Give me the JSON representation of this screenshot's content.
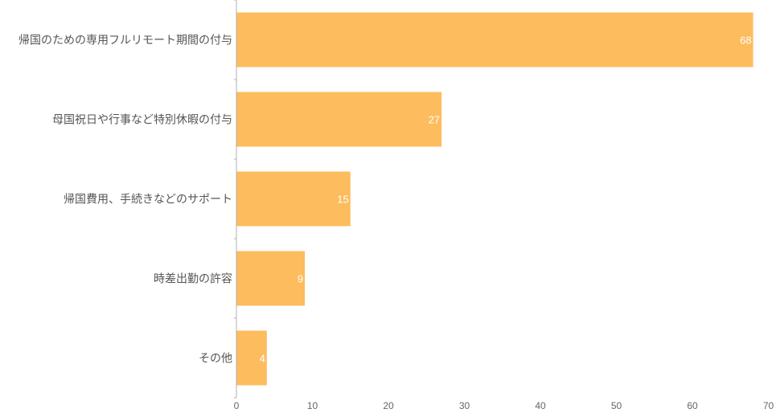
{
  "chart_data": {
    "type": "bar",
    "orientation": "horizontal",
    "categories": [
      "帰国のための専用フルリモート期間の付与",
      "母国祝日や行事など特別休暇の付与",
      "帰国費用、手続きなどのサポート",
      "時差出勤の許容",
      "その他"
    ],
    "values": [
      68,
      27,
      15,
      9,
      4
    ],
    "xlim": [
      0,
      70
    ],
    "xticks": [
      0,
      10,
      20,
      30,
      40,
      50,
      60,
      70
    ],
    "grid": false,
    "data_labels": true,
    "colors": {
      "bar": "#FDBC5D",
      "axis": "#b0b0b0",
      "data_label": "#ffffff"
    }
  }
}
